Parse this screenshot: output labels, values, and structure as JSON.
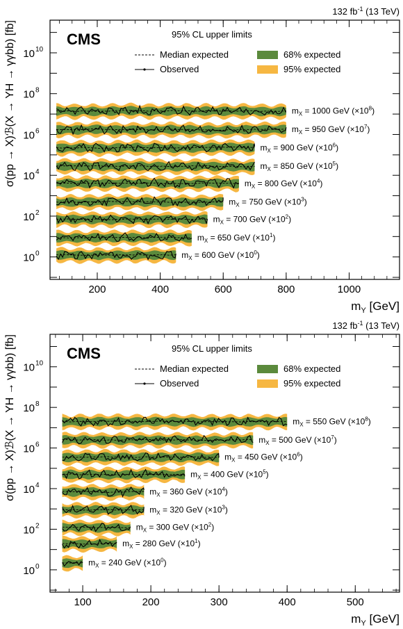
{
  "chart_data": [
    {
      "type": "line",
      "lumi_label": "132 fb",
      "lumi_exp": "-1",
      "energy_label": "(13 TeV)",
      "cms_label": "CMS",
      "cl_label": "95% CL upper limits",
      "legend": {
        "median": "Median expected",
        "observed": "Observed",
        "band68": "68% expected",
        "band95": "95% expected"
      },
      "colors": {
        "band68": "#5b8a3c",
        "band95": "#f6b742",
        "line": "#000000"
      },
      "xlabel": "m",
      "xlabel_sub": "Y",
      "xlabel_unit": "[GeV]",
      "ylabel": "σ(pp → X)ℬ(X → YH → γγbb) [fb]",
      "xlim": [
        50,
        1160
      ],
      "ylim_log10": [
        -1.1,
        11.6
      ],
      "x_ticks": [
        200,
        400,
        600,
        800,
        1000
      ],
      "x_tick_labels": [
        "200",
        "400",
        "600",
        "800",
        "1000"
      ],
      "y_ticks": [
        0,
        2,
        4,
        6,
        8,
        10
      ],
      "y_tick_labels": [
        "10",
        "10",
        "10",
        "10",
        "10",
        "10"
      ],
      "y_tick_exps": [
        "0",
        "2",
        "4",
        "6",
        "8",
        "10"
      ],
      "series": [
        {
          "mx": "600",
          "scale_exp": "0",
          "x": [
            70,
            450
          ],
          "log10_limit": 0.1
        },
        {
          "mx": "650",
          "scale_exp": "1",
          "x": [
            70,
            500
          ],
          "log10_limit": 0.95
        },
        {
          "mx": "700",
          "scale_exp": "2",
          "x": [
            70,
            550
          ],
          "log10_limit": 1.85
        },
        {
          "mx": "750",
          "scale_exp": "3",
          "x": [
            70,
            600
          ],
          "log10_limit": 2.7
        },
        {
          "mx": "800",
          "scale_exp": "4",
          "x": [
            70,
            650
          ],
          "log10_limit": 3.6
        },
        {
          "mx": "850",
          "scale_exp": "5",
          "x": [
            70,
            700
          ],
          "log10_limit": 4.45
        },
        {
          "mx": "900",
          "scale_exp": "6",
          "x": [
            70,
            700
          ],
          "log10_limit": 5.35
        },
        {
          "mx": "950",
          "scale_exp": "7",
          "x": [
            70,
            800
          ],
          "log10_limit": 6.25
        },
        {
          "mx": "1000",
          "scale_exp": "8",
          "x": [
            70,
            800
          ],
          "log10_limit": 7.15
        }
      ]
    },
    {
      "type": "line",
      "lumi_label": "132 fb",
      "lumi_exp": "-1",
      "energy_label": "(13 TeV)",
      "cms_label": "CMS",
      "cl_label": "95% CL upper limits",
      "legend": {
        "median": "Median expected",
        "observed": "Observed",
        "band68": "68% expected",
        "band95": "95% expected"
      },
      "colors": {
        "band68": "#5b8a3c",
        "band95": "#f6b742",
        "line": "#000000"
      },
      "xlabel": "m",
      "xlabel_sub": "Y",
      "xlabel_unit": "[GeV]",
      "ylabel": "σ(pp → X)ℬ(X → YH → γγbb) [fb]",
      "xlim": [
        52,
        565
      ],
      "ylim_log10": [
        -1.1,
        11.6
      ],
      "x_ticks": [
        100,
        200,
        300,
        400,
        500
      ],
      "x_tick_labels": [
        "100",
        "200",
        "300",
        "400",
        "500"
      ],
      "y_ticks": [
        0,
        2,
        4,
        6,
        8,
        10
      ],
      "y_tick_labels": [
        "10",
        "10",
        "10",
        "10",
        "10",
        "10"
      ],
      "y_tick_exps": [
        "0",
        "2",
        "4",
        "6",
        "8",
        "10"
      ],
      "series": [
        {
          "mx": "240",
          "scale_exp": "0",
          "x": [
            70,
            100
          ],
          "log10_limit": 0.35
        },
        {
          "mx": "280",
          "scale_exp": "1",
          "x": [
            70,
            150
          ],
          "log10_limit": 1.3
        },
        {
          "mx": "300",
          "scale_exp": "2",
          "x": [
            70,
            170
          ],
          "log10_limit": 2.1
        },
        {
          "mx": "320",
          "scale_exp": "3",
          "x": [
            70,
            190
          ],
          "log10_limit": 2.95
        },
        {
          "mx": "360",
          "scale_exp": "4",
          "x": [
            70,
            190
          ],
          "log10_limit": 3.85
        },
        {
          "mx": "400",
          "scale_exp": "5",
          "x": [
            70,
            250
          ],
          "log10_limit": 4.7
        },
        {
          "mx": "450",
          "scale_exp": "6",
          "x": [
            70,
            300
          ],
          "log10_limit": 5.55
        },
        {
          "mx": "500",
          "scale_exp": "7",
          "x": [
            70,
            350
          ],
          "log10_limit": 6.4
        },
        {
          "mx": "550",
          "scale_exp": "8",
          "x": [
            70,
            400
          ],
          "log10_limit": 7.3
        }
      ]
    }
  ]
}
